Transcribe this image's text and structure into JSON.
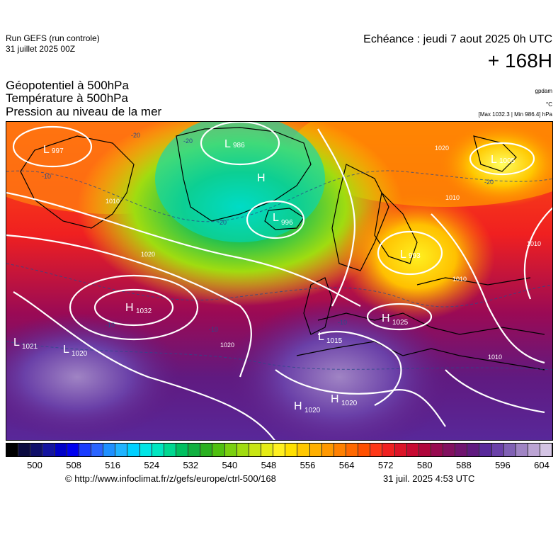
{
  "header": {
    "run_line1": "Run GEFS (run controle)",
    "run_line2": "31 juillet 2025 00Z",
    "echeance": "Echéance : jeudi 7 aout 2025 0h UTC",
    "lead": "+ 168H",
    "param1": "Géopotentiel à 500hPa",
    "param2": "Température à 500hPa",
    "param3": "Pression au niveau de la mer",
    "unit1": "gpdam",
    "unit2": "°C",
    "unit3": "[Max 1032.3 | Min 986.4] hPa"
  },
  "map": {
    "pressure_centers": [
      {
        "type": "L",
        "value": "997"
      },
      {
        "type": "L",
        "value": "986"
      },
      {
        "type": "H",
        "value": ""
      },
      {
        "type": "L",
        "value": "996"
      },
      {
        "type": "L",
        "value": "1005"
      },
      {
        "type": "L",
        "value": "993"
      },
      {
        "type": "H",
        "value": "1032"
      },
      {
        "type": "H",
        "value": "1025"
      },
      {
        "type": "L",
        "value": "1015"
      },
      {
        "type": "L",
        "value": "1021"
      },
      {
        "type": "L",
        "value": "1020"
      },
      {
        "type": "H",
        "value": "1020"
      },
      {
        "type": "H",
        "value": "1020"
      }
    ],
    "isobar_labels": [
      "1020",
      "1020",
      "1010",
      "1010",
      "1010",
      "1020",
      "1010",
      "1010"
    ],
    "isotherm_labels": [
      "-20",
      "-20",
      "-10",
      "-10",
      "-10",
      "-10",
      "-20",
      "-20"
    ]
  },
  "colorbar": {
    "ticks": [
      "500",
      "508",
      "516",
      "524",
      "532",
      "540",
      "548",
      "556",
      "564",
      "572",
      "580",
      "588",
      "596",
      "604"
    ],
    "colors": [
      "#000000",
      "#0a0a40",
      "#10106a",
      "#1414a0",
      "#0000c8",
      "#0000f0",
      "#1a3cff",
      "#2a64ff",
      "#1e90ff",
      "#20b4ff",
      "#00d0ff",
      "#00e6e6",
      "#00e6c0",
      "#00d890",
      "#00c060",
      "#10b040",
      "#2ab020",
      "#50c010",
      "#7ad010",
      "#a0dc10",
      "#c8e614",
      "#e6ec14",
      "#fff020",
      "#ffe000",
      "#ffc800",
      "#ffb000",
      "#ff9800",
      "#ff8000",
      "#ff6800",
      "#ff5000",
      "#ff3818",
      "#f02020",
      "#dc1428",
      "#c80a32",
      "#b0063c",
      "#980a50",
      "#821060",
      "#701470",
      "#601a80",
      "#58289a",
      "#6a40a8",
      "#8060b4",
      "#a084c4",
      "#bca4d4",
      "#d4c4e4"
    ]
  },
  "footer": {
    "url": "© http://www.infoclimat.fr/z/gefs/europe/ctrl-500/168",
    "timestamp": "31 juil. 2025  4:53 UTC"
  }
}
